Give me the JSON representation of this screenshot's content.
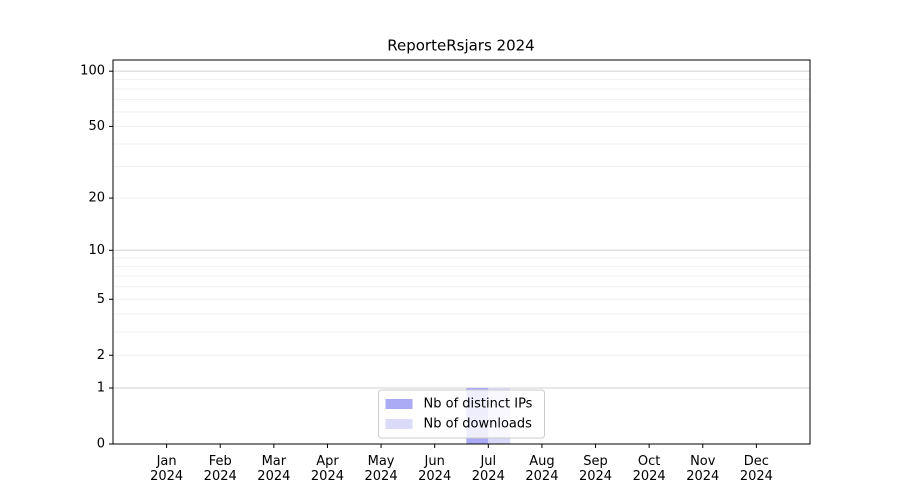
{
  "chart_data": {
    "type": "bar",
    "title": "ReporteRsjars 2024",
    "categories": [
      "Jan 2024",
      "Feb 2024",
      "Mar 2024",
      "Apr 2024",
      "May 2024",
      "Jun 2024",
      "Jul 2024",
      "Aug 2024",
      "Sep 2024",
      "Oct 2024",
      "Nov 2024",
      "Dec 2024"
    ],
    "series": [
      {
        "name": "Nb of distinct IPs",
        "color": "#aaaaf5",
        "values": [
          0,
          0,
          0,
          0,
          0,
          0,
          1,
          0,
          0,
          0,
          0,
          0
        ]
      },
      {
        "name": "Nb of downloads",
        "color": "#dadaf9",
        "values": [
          0,
          0,
          0,
          0,
          0,
          0,
          1,
          0,
          0,
          0,
          0,
          0
        ]
      }
    ],
    "y_scale": "log1p",
    "ylim": [
      0,
      115
    ],
    "yticks": [
      0,
      1,
      2,
      5,
      10,
      20,
      50,
      100
    ],
    "major_grid": [
      1,
      10,
      100
    ],
    "minor_grid": [
      2,
      3,
      4,
      5,
      6,
      7,
      8,
      9,
      20,
      30,
      40,
      50,
      60,
      70,
      80,
      90
    ],
    "grid": true,
    "legend": "lower center"
  }
}
